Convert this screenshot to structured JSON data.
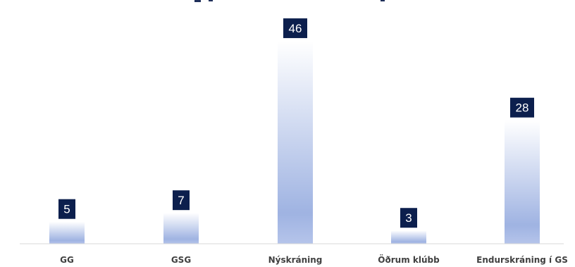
{
  "chart_data": {
    "type": "bar",
    "title": "",
    "xlabel": "",
    "ylabel": "",
    "categories": [
      "GG",
      "GSG",
      "Nýskráning",
      "Öðrum klúbb",
      "Endurskráning í GS"
    ],
    "values": [
      5,
      7,
      46,
      3,
      28
    ],
    "ylim": [
      0,
      50
    ],
    "grid": false,
    "legend": "none",
    "colors": {
      "bar_top": "#ffffff",
      "bar_bottom": "#9fb3e2",
      "label_box": "#0c1f4d",
      "label_text": "#ffffff",
      "axis": "#d9d9d9",
      "category_text": "#404040"
    }
  }
}
